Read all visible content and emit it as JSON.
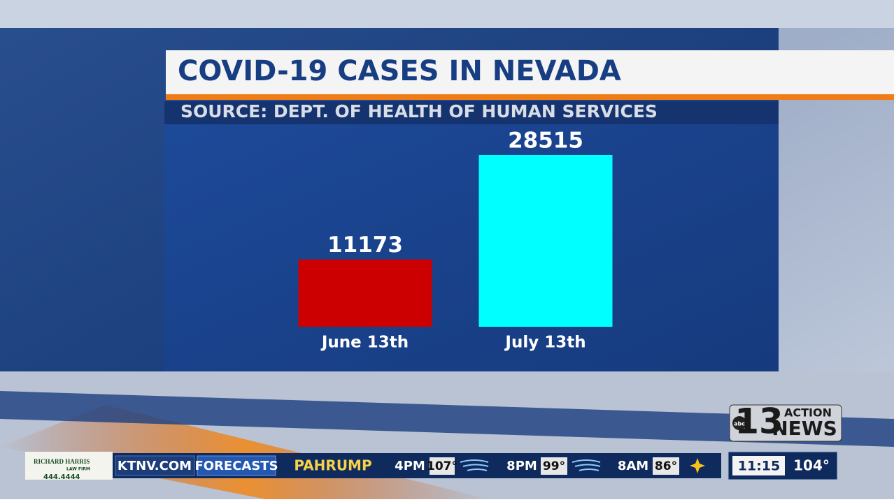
{
  "chart_data": {
    "type": "bar",
    "title": "COVID-19 CASES IN NEVADA",
    "subtitle": "SOURCE: DEPT. OF HEALTH OF HUMAN SERVICES",
    "categories": [
      "June 13th",
      "July 13th"
    ],
    "values": [
      11173,
      28515
    ],
    "colors": [
      "#cc0000",
      "#00ffff"
    ]
  },
  "logo": {
    "network": "abc",
    "channel": "13",
    "top": "ACTION",
    "bottom": "NEWS"
  },
  "ticker": {
    "sponsor": {
      "name": "RICHARD HARRIS",
      "sub": "LAW FIRM",
      "phone": "444.4444"
    },
    "site": "KTNV.COM",
    "section": "FORECASTS",
    "location": "PAHRUMP",
    "forecast": [
      {
        "time": "4PM",
        "temp": "107°"
      },
      {
        "time": "8PM",
        "temp": "99°"
      },
      {
        "time": "8AM",
        "temp": "86°"
      }
    ],
    "clock": "11:15",
    "now": "104°"
  }
}
